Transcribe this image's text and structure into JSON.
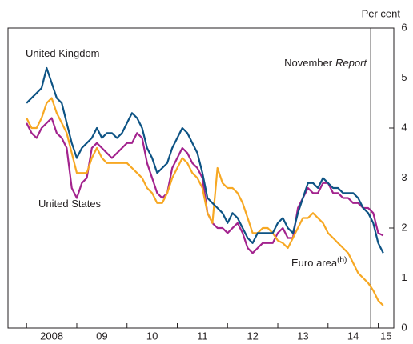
{
  "chart_data": {
    "type": "line",
    "y_label": "Per cent",
    "xlim": [
      2007.63,
      2015.31
    ],
    "xticks": [
      {
        "value": 2008,
        "label": "2008"
      },
      {
        "value": 2009,
        "label": "09"
      },
      {
        "value": 2010,
        "label": "10"
      },
      {
        "value": 2011,
        "label": "11"
      },
      {
        "value": 2012,
        "label": "12"
      },
      {
        "value": 2013,
        "label": "13"
      },
      {
        "value": 2014,
        "label": "14"
      },
      {
        "value": 2015,
        "label": "15"
      }
    ],
    "ylim": [
      0,
      6
    ],
    "yticks": [
      0,
      1,
      2,
      3,
      4,
      5,
      6
    ],
    "annotations": [
      {
        "text": "November",
        "emphasis": "Report",
        "x": 2014.85
      }
    ],
    "x": [
      2008.0,
      2008.1,
      2008.2,
      2008.3,
      2008.4,
      2008.5,
      2008.6,
      2008.7,
      2008.8,
      2008.9,
      2009.0,
      2009.1,
      2009.2,
      2009.3,
      2009.4,
      2009.5,
      2009.6,
      2009.7,
      2009.8,
      2009.9,
      2010.0,
      2010.1,
      2010.2,
      2010.3,
      2010.4,
      2010.5,
      2010.6,
      2010.7,
      2010.8,
      2010.9,
      2011.0,
      2011.1,
      2011.2,
      2011.3,
      2011.4,
      2011.5,
      2011.6,
      2011.7,
      2011.8,
      2011.9,
      2012.0,
      2012.1,
      2012.2,
      2012.3,
      2012.4,
      2012.5,
      2012.6,
      2012.7,
      2012.8,
      2012.9,
      2013.0,
      2013.1,
      2013.2,
      2013.3,
      2013.4,
      2013.5,
      2013.6,
      2013.7,
      2013.8,
      2013.9,
      2014.0,
      2014.1,
      2014.2,
      2014.3,
      2014.4,
      2014.5,
      2014.6,
      2014.7,
      2014.8,
      2014.9,
      2015.0,
      2015.1
    ],
    "series": [
      {
        "name": "United States",
        "superscript": null,
        "color": "#a3238e",
        "values": [
          4.1,
          3.9,
          3.8,
          4.0,
          4.1,
          4.2,
          3.9,
          3.8,
          3.6,
          2.8,
          2.6,
          2.9,
          3.0,
          3.6,
          3.7,
          3.6,
          3.5,
          3.4,
          3.5,
          3.6,
          3.7,
          3.7,
          3.9,
          3.8,
          3.3,
          3.0,
          2.7,
          2.6,
          2.7,
          3.2,
          3.4,
          3.6,
          3.5,
          3.3,
          3.2,
          3.0,
          2.3,
          2.1,
          2.0,
          2.0,
          1.9,
          2.0,
          2.1,
          1.9,
          1.6,
          1.5,
          1.6,
          1.7,
          1.7,
          1.7,
          1.9,
          2.0,
          1.8,
          1.8,
          2.4,
          2.6,
          2.8,
          2.7,
          2.7,
          2.9,
          2.9,
          2.7,
          2.7,
          2.6,
          2.6,
          2.5,
          2.5,
          2.4,
          2.4,
          2.3,
          1.9,
          1.85
        ]
      },
      {
        "name": "Euro area",
        "superscript": "(b)",
        "color": "#f7a823",
        "values": [
          4.2,
          4.0,
          4.0,
          4.2,
          4.5,
          4.6,
          4.3,
          4.1,
          3.9,
          3.5,
          3.1,
          3.1,
          3.1,
          3.4,
          3.6,
          3.4,
          3.3,
          3.3,
          3.3,
          3.3,
          3.3,
          3.2,
          3.1,
          3.0,
          2.8,
          2.7,
          2.5,
          2.5,
          2.7,
          3.0,
          3.2,
          3.4,
          3.3,
          3.1,
          3.0,
          2.8,
          2.3,
          2.1,
          3.2,
          2.9,
          2.8,
          2.8,
          2.7,
          2.5,
          2.2,
          1.9,
          1.9,
          2.0,
          2.0,
          1.9,
          1.75,
          1.7,
          1.6,
          1.8,
          2.0,
          2.2,
          2.2,
          2.3,
          2.2,
          2.1,
          1.9,
          1.8,
          1.7,
          1.6,
          1.5,
          1.3,
          1.1,
          1.0,
          0.9,
          0.75,
          0.55,
          0.45
        ]
      },
      {
        "name": "United Kingdom",
        "superscript": null,
        "color": "#0d5384",
        "values": [
          4.5,
          4.6,
          4.7,
          4.8,
          5.2,
          4.9,
          4.6,
          4.5,
          4.1,
          3.7,
          3.4,
          3.6,
          3.7,
          3.8,
          4.0,
          3.8,
          3.9,
          3.9,
          3.8,
          3.9,
          4.1,
          4.3,
          4.2,
          4.0,
          3.6,
          3.4,
          3.1,
          3.2,
          3.3,
          3.6,
          3.8,
          4.0,
          3.9,
          3.7,
          3.5,
          3.1,
          2.6,
          2.5,
          2.4,
          2.3,
          2.1,
          2.3,
          2.2,
          2.0,
          1.8,
          1.7,
          1.9,
          1.9,
          1.9,
          1.9,
          2.1,
          2.2,
          2.0,
          1.9,
          2.3,
          2.6,
          2.9,
          2.9,
          2.8,
          3.0,
          2.9,
          2.8,
          2.8,
          2.7,
          2.7,
          2.7,
          2.6,
          2.4,
          2.3,
          2.1,
          1.7,
          1.5
        ]
      }
    ]
  }
}
